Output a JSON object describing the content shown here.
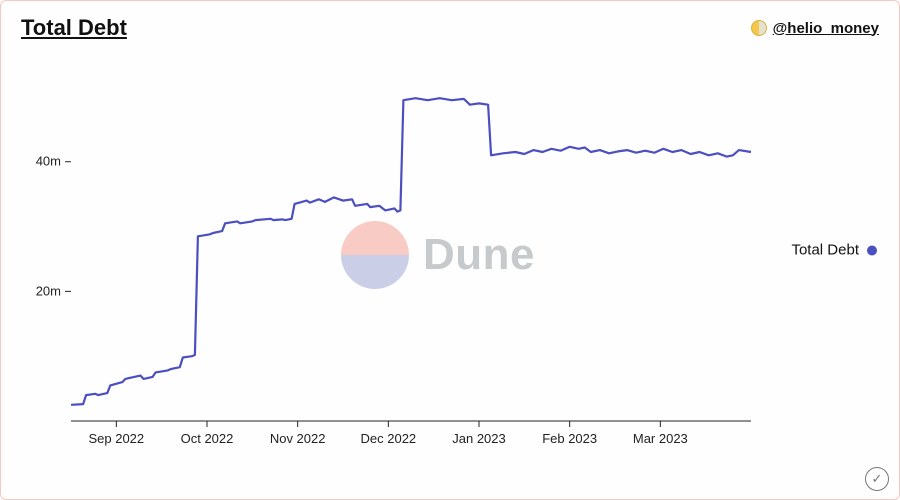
{
  "card": {
    "border_color": "#f3c9c4",
    "background_color": "#fffefe"
  },
  "title": "Total Debt",
  "attribution": "@helio_money",
  "watermark_text": "Dune",
  "watermark_top_color": "#f2a396",
  "watermark_bottom_color": "#a0a7d4",
  "legend": {
    "label": "Total Debt",
    "color": "#4b4fc0"
  },
  "chart": {
    "type": "line",
    "line_color": "#4b4fc0",
    "line_width": 2.2,
    "background_color": "#fffefe",
    "y": {
      "min": 0,
      "max": 54,
      "ticks": [
        20,
        40
      ],
      "tick_labels": [
        "20m",
        "40m"
      ],
      "tick_fontsize": 13
    },
    "x": {
      "min": 0,
      "max": 225,
      "tick_positions": [
        15,
        45,
        75,
        105,
        135,
        165,
        195
      ],
      "tick_labels": [
        "Sep 2022",
        "Oct 2022",
        "Nov 2022",
        "Dec 2022",
        "Jan 2023",
        "Feb 2023",
        "Mar 2023"
      ],
      "tick_fontsize": 13
    },
    "series": [
      {
        "name": "Total Debt",
        "points": [
          [
            0,
            2.5
          ],
          [
            4,
            2.6
          ],
          [
            5,
            4.0
          ],
          [
            8,
            4.2
          ],
          [
            9,
            4.0
          ],
          [
            12,
            4.3
          ],
          [
            13,
            5.5
          ],
          [
            17,
            6.0
          ],
          [
            18,
            6.5
          ],
          [
            23,
            7.0
          ],
          [
            24,
            6.5
          ],
          [
            27,
            6.8
          ],
          [
            28,
            7.5
          ],
          [
            32,
            7.8
          ],
          [
            33,
            8.0
          ],
          [
            36,
            8.3
          ],
          [
            37,
            9.8
          ],
          [
            40,
            10.0
          ],
          [
            41,
            10.2
          ],
          [
            42,
            28.5
          ],
          [
            46,
            28.8
          ],
          [
            47,
            29.0
          ],
          [
            50,
            29.3
          ],
          [
            51,
            30.5
          ],
          [
            55,
            30.8
          ],
          [
            56,
            30.5
          ],
          [
            60,
            30.8
          ],
          [
            61,
            31.0
          ],
          [
            66,
            31.2
          ],
          [
            67,
            31.0
          ],
          [
            70,
            31.1
          ],
          [
            71,
            31.0
          ],
          [
            73,
            31.2
          ],
          [
            74,
            33.5
          ],
          [
            78,
            34.0
          ],
          [
            79,
            33.7
          ],
          [
            82,
            34.2
          ],
          [
            84,
            33.8
          ],
          [
            87,
            34.5
          ],
          [
            90,
            34.0
          ],
          [
            93,
            34.2
          ],
          [
            94,
            33.2
          ],
          [
            98,
            33.5
          ],
          [
            99,
            33.0
          ],
          [
            102,
            33.2
          ],
          [
            104,
            32.5
          ],
          [
            107,
            32.8
          ],
          [
            108,
            32.3
          ],
          [
            109,
            32.5
          ],
          [
            110,
            49.5
          ],
          [
            114,
            49.8
          ],
          [
            118,
            49.5
          ],
          [
            122,
            49.8
          ],
          [
            126,
            49.5
          ],
          [
            130,
            49.7
          ],
          [
            132,
            48.8
          ],
          [
            135,
            49.0
          ],
          [
            138,
            48.8
          ],
          [
            139,
            41.0
          ],
          [
            143,
            41.3
          ],
          [
            147,
            41.5
          ],
          [
            150,
            41.2
          ],
          [
            153,
            41.8
          ],
          [
            156,
            41.5
          ],
          [
            159,
            42.0
          ],
          [
            162,
            41.7
          ],
          [
            165,
            42.3
          ],
          [
            168,
            42.0
          ],
          [
            170,
            42.2
          ],
          [
            172,
            41.5
          ],
          [
            175,
            41.8
          ],
          [
            178,
            41.3
          ],
          [
            181,
            41.6
          ],
          [
            184,
            41.8
          ],
          [
            187,
            41.4
          ],
          [
            190,
            41.7
          ],
          [
            193,
            41.4
          ],
          [
            196,
            42.0
          ],
          [
            199,
            41.5
          ],
          [
            202,
            41.8
          ],
          [
            205,
            41.2
          ],
          [
            208,
            41.5
          ],
          [
            211,
            41.0
          ],
          [
            214,
            41.3
          ],
          [
            217,
            40.8
          ],
          [
            219,
            41.0
          ],
          [
            221,
            41.8
          ],
          [
            225,
            41.5
          ]
        ]
      }
    ]
  },
  "badge_symbol": "✓"
}
